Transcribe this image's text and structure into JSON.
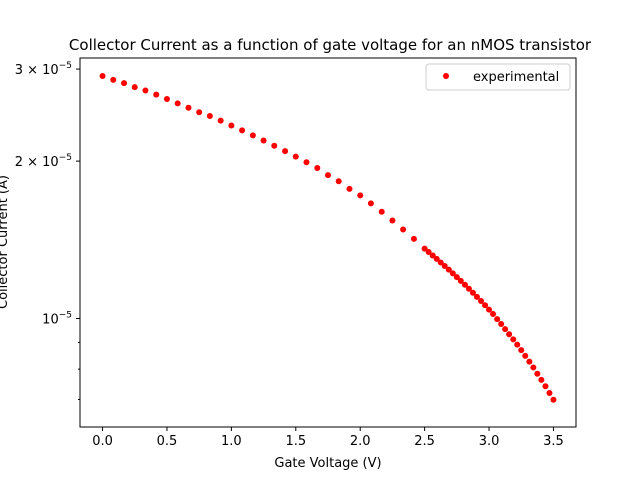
{
  "chart_data": {
    "type": "scatter",
    "title": "Collector Current as a function of gate voltage for an nMOS transistor",
    "xlabel": "Gate Voltage (V)",
    "ylabel": "Collector Current (A)",
    "xlim": [
      -0.175,
      3.675
    ],
    "ylim": [
      6.2e-06,
      3.15e-05
    ],
    "yscale": "log",
    "grid": false,
    "legend_position": "top-right",
    "x_ticks": [
      {
        "value": 0.0,
        "label": "0.0"
      },
      {
        "value": 0.5,
        "label": "0.5"
      },
      {
        "value": 1.0,
        "label": "1.0"
      },
      {
        "value": 1.5,
        "label": "1.5"
      },
      {
        "value": 2.0,
        "label": "2.0"
      },
      {
        "value": 2.5,
        "label": "2.5"
      },
      {
        "value": 3.0,
        "label": "3.0"
      },
      {
        "value": 3.5,
        "label": "3.5"
      }
    ],
    "y_ticks": [
      {
        "value": 1e-05,
        "mantissa": "10",
        "exp": "−5"
      },
      {
        "value": 2e-05,
        "mantissa": "2 × 10",
        "exp": "−5"
      },
      {
        "value": 3e-05,
        "mantissa": "3 × 10",
        "exp": "−5"
      }
    ],
    "y_minor_ticks": [
      7e-06,
      8e-06,
      9e-06
    ],
    "series": [
      {
        "name": "experimental",
        "color": "#ff0000",
        "marker": "circle",
        "x": [
          0.0,
          0.083,
          0.167,
          0.25,
          0.333,
          0.417,
          0.5,
          0.583,
          0.667,
          0.75,
          0.833,
          0.917,
          1.0,
          1.083,
          1.167,
          1.25,
          1.333,
          1.417,
          1.5,
          1.583,
          1.667,
          1.75,
          1.833,
          1.917,
          2.0,
          2.083,
          2.167,
          2.25,
          2.333,
          2.417,
          2.5,
          2.531,
          2.563,
          2.594,
          2.625,
          2.656,
          2.688,
          2.719,
          2.75,
          2.781,
          2.813,
          2.844,
          2.875,
          2.906,
          2.938,
          2.969,
          3.0,
          3.031,
          3.063,
          3.094,
          3.125,
          3.156,
          3.188,
          3.219,
          3.25,
          3.281,
          3.313,
          3.344,
          3.375,
          3.406,
          3.438,
          3.469,
          3.5
        ],
        "y": [
          2.91e-05,
          2.86e-05,
          2.82e-05,
          2.77e-05,
          2.73e-05,
          2.68e-05,
          2.63e-05,
          2.58e-05,
          2.53e-05,
          2.48e-05,
          2.44e-05,
          2.39e-05,
          2.34e-05,
          2.29e-05,
          2.24e-05,
          2.19e-05,
          2.14e-05,
          2.09e-05,
          2.04e-05,
          1.99e-05,
          1.94e-05,
          1.88e-05,
          1.83e-05,
          1.77e-05,
          1.72e-05,
          1.66e-05,
          1.6e-05,
          1.54e-05,
          1.48e-05,
          1.42e-05,
          1.36e-05,
          1.34e-05,
          1.32e-05,
          1.3e-05,
          1.28e-05,
          1.26e-05,
          1.24e-05,
          1.22e-05,
          1.2e-05,
          1.18e-05,
          1.16e-05,
          1.14e-05,
          1.12e-05,
          1.1e-05,
          1.08e-05,
          1.06e-05,
          1.04e-05,
          1.02e-05,
          9.97e-06,
          9.76e-06,
          9.54e-06,
          9.33e-06,
          9.12e-06,
          8.91e-06,
          8.7e-06,
          8.48e-06,
          8.27e-06,
          8.06e-06,
          7.84e-06,
          7.63e-06,
          7.42e-06,
          7.2e-06,
          6.99e-06
        ]
      }
    ]
  }
}
